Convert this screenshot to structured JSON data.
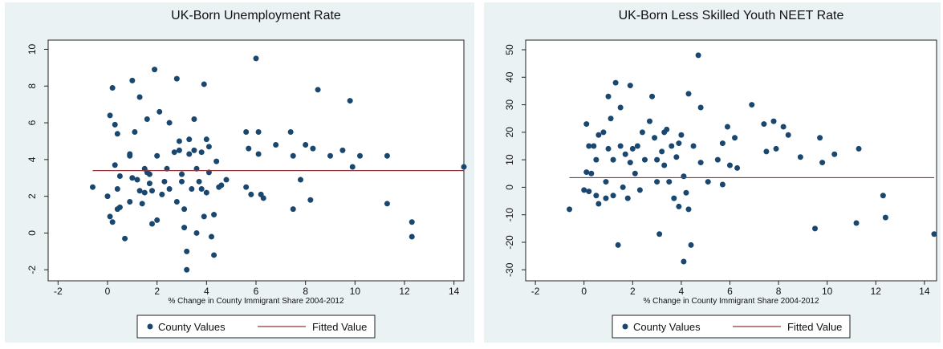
{
  "chart_data": [
    {
      "type": "scatter",
      "title": "UK-Born Unemployment Rate",
      "x_label": "% Change in County Immigrant Share 2004-2012",
      "xlim": [
        -2.4,
        14.4
      ],
      "ylim": [
        -2.6,
        10.5
      ],
      "xticks": [
        -2,
        0,
        2,
        4,
        6,
        8,
        10,
        12,
        14
      ],
      "yticks": [
        -2,
        0,
        2,
        4,
        6,
        8,
        10
      ],
      "legend": "bottom",
      "series": [
        {
          "name": "County Values",
          "color": "#1a476f",
          "mark": "point",
          "x": [
            -0.6,
            0,
            0.1,
            0.1,
            0.2,
            0.2,
            0.3,
            0.3,
            0.4,
            0.4,
            0.4,
            0.5,
            0.5,
            0.7,
            0.9,
            0.9,
            0.9,
            1,
            1,
            1.1,
            1.2,
            1.3,
            1.3,
            1.4,
            1.5,
            1.5,
            1.6,
            1.6,
            1.7,
            1.7,
            1.8,
            1.8,
            1.9,
            2,
            2,
            2.1,
            2.2,
            2.3,
            2.4,
            2.5,
            2.5,
            2.7,
            2.8,
            2.8,
            2.9,
            2.9,
            3,
            3,
            3.1,
            3.1,
            3.2,
            3.2,
            3.3,
            3.3,
            3.4,
            3.5,
            3.5,
            3.6,
            3.6,
            3.7,
            3.8,
            3.8,
            3.9,
            3.9,
            4,
            4,
            4.1,
            4.1,
            4.2,
            4.3,
            4.3,
            4.4,
            4.5,
            4.6,
            4.8,
            5.6,
            5.6,
            5.7,
            5.8,
            6,
            6.1,
            6.1,
            6.2,
            6.3,
            6.8,
            7.4,
            7.5,
            7.5,
            7.8,
            8,
            8.2,
            8.3,
            8.5,
            9,
            9.5,
            9.8,
            9.9,
            10.2,
            11.3,
            11.3,
            12.3,
            12.3,
            14.4
          ],
          "values": [
            2.5,
            2,
            6.4,
            0.9,
            0.6,
            7.9,
            5.9,
            3.7,
            2.4,
            5.4,
            1.3,
            1.4,
            3.1,
            -0.3,
            4.2,
            4.3,
            1.7,
            8.3,
            3,
            5.5,
            2.9,
            7.4,
            2.3,
            1.6,
            2.2,
            3.5,
            6.2,
            3.3,
            3.2,
            2.7,
            2.3,
            0.5,
            8.9,
            4.2,
            0.7,
            6.6,
            2.1,
            2.8,
            3.5,
            6,
            2.4,
            4.4,
            8.4,
            1.7,
            5,
            4.5,
            2.8,
            3.2,
            1.3,
            0.3,
            -2,
            -1,
            4.3,
            5.1,
            2.4,
            6.2,
            4.5,
            0,
            3.5,
            2.8,
            4.4,
            2.4,
            0.9,
            8.1,
            5.1,
            2.2,
            3.3,
            4.7,
            -0.2,
            -1.2,
            1,
            3.9,
            2.5,
            2.6,
            2.9,
            5.5,
            2.5,
            4.6,
            2.1,
            9.5,
            5.5,
            4.3,
            2.1,
            1.9,
            4.8,
            5.5,
            1.3,
            4.2,
            2.9,
            4.8,
            1.8,
            4.6,
            7.8,
            4.2,
            4.5,
            7.2,
            3.6,
            4.2,
            4.2,
            1.6,
            0.6,
            -0.2,
            3.6
          ]
        },
        {
          "name": "Fitted Value",
          "color": "#90353b",
          "mark": "line",
          "x": [
            -0.6,
            14.4
          ],
          "values": [
            3.4,
            3.4
          ]
        }
      ]
    },
    {
      "type": "scatter",
      "title": "UK-Born Less Skilled Youth NEET Rate",
      "x_label": "% Change in County Immigrant Share 2004-2012",
      "xlim": [
        -2.4,
        14.5
      ],
      "ylim": [
        -34,
        53.5
      ],
      "xticks": [
        -2,
        0,
        2,
        4,
        6,
        8,
        10,
        12,
        14
      ],
      "yticks": [
        -30,
        -20,
        -10,
        0,
        10,
        20,
        30,
        40,
        50
      ],
      "legend": "bottom",
      "series": [
        {
          "name": "County Values",
          "color": "#1a476f",
          "mark": "point",
          "x": [
            -0.6,
            0,
            0.1,
            0.1,
            0.2,
            0.2,
            0.3,
            0.4,
            0.5,
            0.5,
            0.6,
            0.6,
            0.8,
            0.9,
            0.9,
            1,
            1,
            1.1,
            1.2,
            1.2,
            1.3,
            1.4,
            1.5,
            1.5,
            1.6,
            1.7,
            1.8,
            1.9,
            1.9,
            2,
            2.1,
            2.2,
            2.3,
            2.4,
            2.5,
            2.7,
            2.8,
            2.9,
            3,
            3,
            3.1,
            3.2,
            3.3,
            3.3,
            3.4,
            3.5,
            3.6,
            3.7,
            3.8,
            3.9,
            3.9,
            4,
            4.1,
            4.1,
            4.2,
            4.3,
            4.3,
            4.4,
            4.5,
            4.7,
            4.8,
            4.8,
            5.1,
            5.5,
            5.7,
            5.7,
            5.9,
            6,
            6.2,
            6.3,
            6.9,
            7.4,
            7.5,
            7.8,
            7.9,
            8.2,
            8.4,
            8.9,
            9.5,
            9.7,
            9.8,
            10.3,
            11.2,
            11.3,
            12.3,
            12.4,
            14.4
          ],
          "values": [
            -8,
            -1,
            5.5,
            23,
            15,
            -1.5,
            5,
            15,
            -3,
            10,
            -6,
            19,
            20,
            2,
            -4,
            33,
            14,
            25,
            -3,
            10,
            38,
            -21,
            29,
            15,
            0,
            12,
            -4,
            37,
            9,
            14,
            5,
            15,
            -1,
            20,
            10,
            24,
            33,
            18,
            10,
            2,
            -17,
            13,
            20,
            8,
            21,
            2,
            15,
            -4,
            11,
            -7,
            16,
            19,
            -27,
            4,
            -2,
            -8,
            34,
            -21,
            15,
            48,
            29,
            9,
            2,
            10,
            1,
            16,
            22,
            8,
            18,
            7,
            30,
            23,
            13,
            24,
            14,
            22,
            19,
            11,
            -15,
            18,
            9,
            12,
            -13,
            14,
            -3,
            -11,
            -17
          ]
        },
        {
          "name": "Fitted Value",
          "color": "#90353b",
          "mark": "line",
          "x": [
            -0.6,
            14.4
          ],
          "values": [
            3.5,
            3.5
          ]
        }
      ]
    }
  ]
}
